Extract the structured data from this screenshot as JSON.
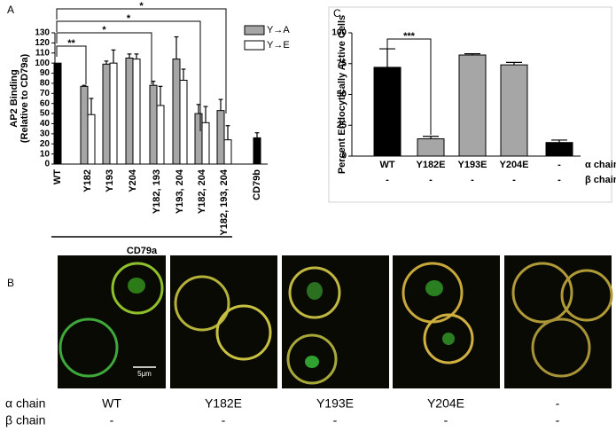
{
  "panel_labels": [
    "A",
    "B",
    "C"
  ],
  "chart_data": [
    {
      "type": "bar",
      "ylabel": [
        "AP2 Binding",
        "(Relative to CD79a)"
      ],
      "categories": [
        "WT",
        "Y182",
        "Y193",
        "Y204",
        "Y182, 193",
        "Y193, 204",
        "Y182, 204",
        "Y182, 193, 204",
        "CD79b"
      ],
      "group_label": "CD79a",
      "series": [
        {
          "color": "#000000",
          "values": [
            100,
            null,
            null,
            null,
            null,
            null,
            null,
            null,
            26
          ],
          "errors": [
            null,
            null,
            null,
            null,
            null,
            null,
            null,
            null,
            5
          ]
        },
        {
          "name": "Y→A",
          "color": "#a6a6a6",
          "values": [
            null,
            77,
            99,
            105,
            78,
            104,
            50,
            53,
            null
          ],
          "errors": [
            null,
            1,
            3,
            4,
            4,
            22,
            9,
            11,
            null
          ]
        },
        {
          "name": "Y→E",
          "color": "#ffffff",
          "values": [
            null,
            49,
            100,
            104,
            58,
            83,
            41,
            24,
            null
          ],
          "errors": [
            null,
            16,
            13,
            5,
            19,
            11,
            16,
            14,
            null
          ]
        }
      ],
      "annotations": [
        "**",
        "*",
        "*",
        "*"
      ],
      "ylim": [
        0,
        130
      ],
      "yticks": [
        0,
        10,
        20,
        30,
        40,
        50,
        60,
        70,
        80,
        90,
        100,
        110,
        120,
        130
      ]
    },
    {
      "type": "bar",
      "ylabel": [
        "Percent Endocytically Active Cells"
      ],
      "categories": [
        "WT",
        "Y182E",
        "Y193E",
        "Y204E",
        "-"
      ],
      "categories_2": [
        "-",
        "-",
        "-",
        "-",
        "-"
      ],
      "row_labels": [
        "α chain",
        "β chain"
      ],
      "series": [
        {
          "colors": [
            "#000000",
            "#a6a6a6",
            "#a6a6a6",
            "#a6a6a6",
            "#000000"
          ],
          "values": [
            72,
            14,
            82,
            74,
            11
          ],
          "errors": [
            15,
            2,
            1,
            2,
            2
          ]
        }
      ],
      "annotations": [
        "***"
      ],
      "ylim": [
        0,
        100
      ],
      "yticks": [
        0,
        25,
        50,
        75,
        100
      ]
    }
  ],
  "microscopy": {
    "scale_bar": "5μm",
    "row_labels": [
      "α chain",
      "β chain"
    ],
    "alpha": [
      "WT",
      "Y182E",
      "Y193E",
      "Y204E",
      "-"
    ],
    "beta": [
      "-",
      "-",
      "-",
      "-",
      "-"
    ]
  }
}
